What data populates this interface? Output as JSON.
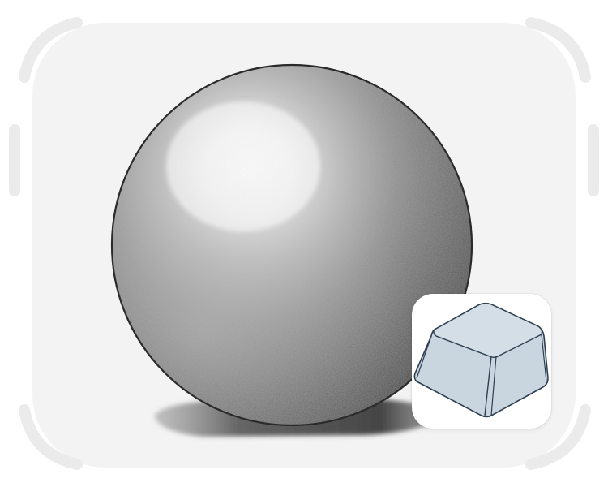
{
  "illustration": {
    "subject": "shaded-sphere",
    "inset_icon": "keycap-icon"
  },
  "colors": {
    "canvas_background": "#f3f3f3",
    "frame_stroke": "#ececec",
    "sphere_highlight": "#fbfbfb",
    "sphere_mid": "#9a9a9a",
    "sphere_shadow": "#3c3c3c",
    "sphere_outline": "#2a2a2a",
    "keycap_fill": "#c9d6e0",
    "keycap_top": "#d3dee7",
    "keycap_outline": "#2f3f4f"
  }
}
